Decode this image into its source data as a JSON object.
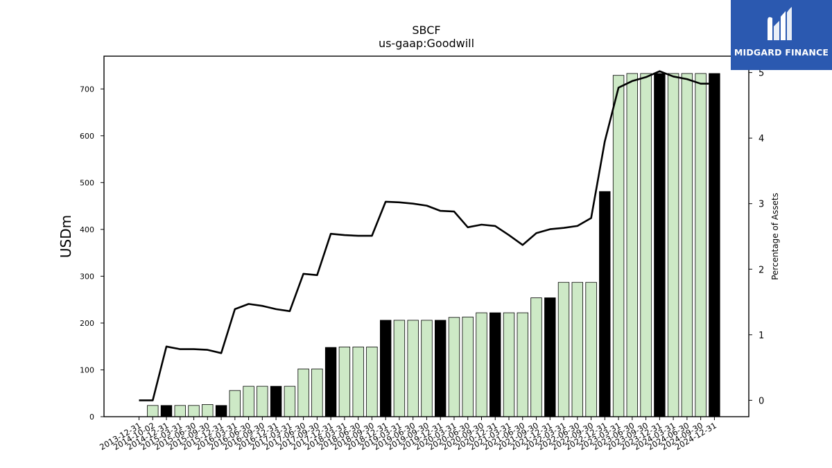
{
  "chart_data": {
    "type": "bar",
    "title": "SBCF",
    "subtitle": "us-gaap:Goodwill",
    "ylabel": "USDm",
    "y2label": "Percentage of Assets",
    "ylim": [
      0,
      770
    ],
    "y2lim": [
      -0.25,
      5.25
    ],
    "yticks": [
      0,
      100,
      200,
      300,
      400,
      500,
      600,
      700
    ],
    "y2ticks": [
      0,
      1,
      2,
      3,
      4,
      5
    ],
    "colors": {
      "bar_light": "#cde9c6",
      "bar_dark": "#000000",
      "line": "#000000"
    },
    "categories": [
      "2013-12-31",
      "2014-10-02",
      "2014-12-31",
      "2015-03-31",
      "2015-06-30",
      "2015-09-30",
      "2015-12-31",
      "2016-03-31",
      "2016-06-30",
      "2016-09-30",
      "2016-12-31",
      "2017-03-31",
      "2017-06-30",
      "2017-09-30",
      "2017-12-31",
      "2018-03-31",
      "2018-06-30",
      "2018-09-30",
      "2018-12-31",
      "2019-03-31",
      "2019-06-30",
      "2019-09-30",
      "2019-12-31",
      "2020-03-31",
      "2020-06-30",
      "2020-09-30",
      "2020-12-31",
      "2021-03-31",
      "2021-06-30",
      "2021-09-30",
      "2021-12-31",
      "2022-03-31",
      "2022-06-30",
      "2022-09-30",
      "2022-12-31",
      "2023-03-31",
      "2023-06-30",
      "2023-09-30",
      "2023-12-31",
      "2024-03-31",
      "2024-06-30",
      "2024-09-30",
      "2024-12-31"
    ],
    "series": [
      {
        "kind": "bar",
        "values": [
          0,
          24,
          24,
          24,
          24,
          26,
          24,
          56,
          65,
          65,
          65,
          65,
          102,
          102,
          148,
          149,
          149,
          149,
          206,
          206,
          206,
          206,
          206,
          212,
          213,
          222,
          222,
          222,
          222,
          254,
          254,
          287,
          287,
          287,
          481,
          729,
          733,
          733,
          733,
          733,
          733,
          733,
          733
        ],
        "year_end": [
          false,
          false,
          true,
          false,
          false,
          false,
          true,
          false,
          false,
          false,
          true,
          false,
          false,
          false,
          true,
          false,
          false,
          false,
          true,
          false,
          false,
          false,
          true,
          false,
          false,
          false,
          true,
          false,
          false,
          false,
          true,
          false,
          false,
          false,
          true,
          false,
          false,
          false,
          true,
          false,
          false,
          false,
          true
        ]
      },
      {
        "kind": "line",
        "axis": "right",
        "values": [
          0,
          0,
          0.82,
          0.78,
          0.78,
          0.77,
          0.72,
          1.39,
          1.47,
          1.44,
          1.39,
          1.36,
          1.93,
          1.91,
          2.54,
          2.52,
          2.51,
          2.51,
          3.03,
          3.02,
          3.0,
          2.97,
          2.89,
          2.88,
          2.64,
          2.68,
          2.66,
          2.52,
          2.37,
          2.55,
          2.61,
          2.63,
          2.66,
          2.78,
          3.95,
          4.77,
          4.87,
          4.93,
          5.02,
          4.94,
          4.9,
          4.83,
          4.83
        ]
      }
    ]
  },
  "logo": {
    "text": "MIDGARD FINANCE"
  }
}
